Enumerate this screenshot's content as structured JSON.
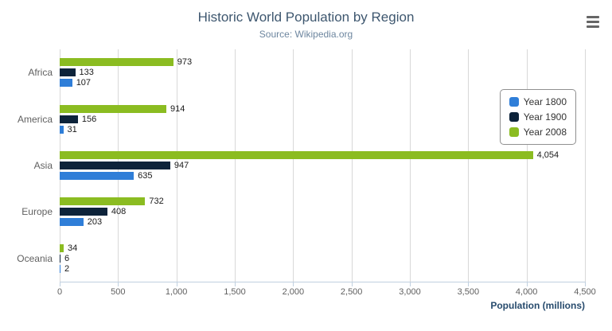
{
  "chart_data": {
    "type": "bar",
    "title": "Historic World Population by Region",
    "subtitle": "Source: Wikipedia.org",
    "categories": [
      "Africa",
      "America",
      "Asia",
      "Europe",
      "Oceania"
    ],
    "series": [
      {
        "name": "Year 1800",
        "color": "#2f7ed8",
        "values": [
          107,
          31,
          635,
          203,
          2
        ]
      },
      {
        "name": "Year 1900",
        "color": "#0d233a",
        "values": [
          133,
          156,
          947,
          408,
          6
        ]
      },
      {
        "name": "Year 2008",
        "color": "#8bbc21",
        "values": [
          973,
          914,
          4054,
          732,
          34
        ]
      }
    ],
    "bar_order_top_to_bottom": [
      "Year 2008",
      "Year 1900",
      "Year 1800"
    ],
    "xlabel": "Population (millions)",
    "xlim": [
      0,
      4500
    ],
    "x_ticks": [
      "0",
      "500",
      "1,000",
      "1,500",
      "2,000",
      "2,500",
      "3,000",
      "3,500",
      "4,000",
      "4,500"
    ],
    "grid": true,
    "legend_position": "right",
    "value_labels_shown": true
  },
  "export_menu": {
    "icon": "hamburger-icon"
  }
}
